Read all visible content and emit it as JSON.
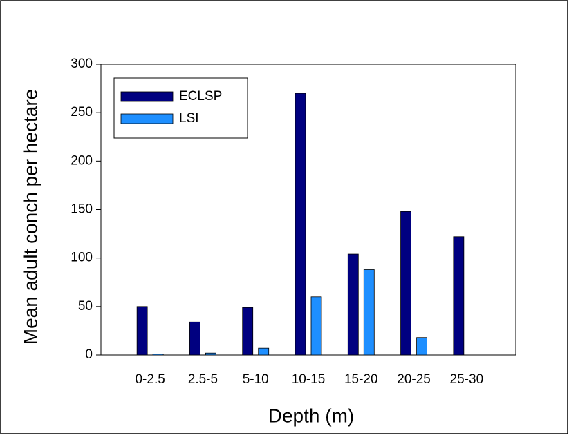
{
  "chart_data": {
    "type": "bar",
    "x_label": "Depth (m)",
    "y_label": "Mean adult conch per hectare",
    "categories": [
      "0-2.5",
      "2.5-5",
      "5-10",
      "10-15",
      "15-20",
      "20-25",
      "25-30"
    ],
    "series": [
      {
        "name": "ECLSP",
        "color": "#000080",
        "values": [
          50,
          34,
          49,
          270,
          104,
          148,
          122
        ]
      },
      {
        "name": "LSI",
        "color": "#1e8fff",
        "values": [
          1,
          2,
          7,
          60,
          88,
          18,
          0
        ]
      }
    ],
    "ylim": [
      0,
      300
    ],
    "yticks": [
      0,
      50,
      100,
      150,
      200,
      250,
      300
    ],
    "legend": "upper-left",
    "grid": false
  }
}
